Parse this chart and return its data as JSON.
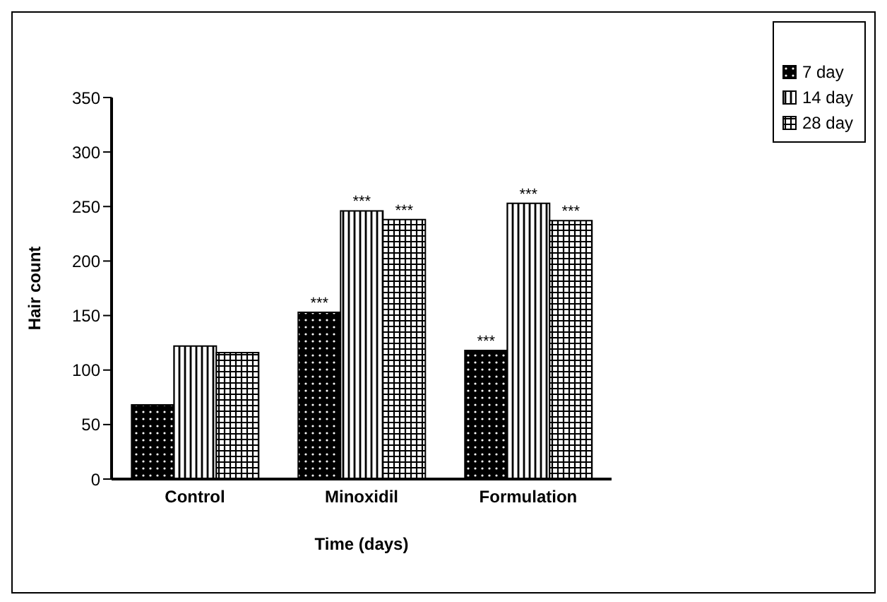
{
  "chart_data": {
    "type": "bar",
    "xlabel": "Time (days)",
    "ylabel": "Hair count",
    "categories": [
      "Control",
      "Minoxidil",
      "Formulation"
    ],
    "series": [
      {
        "name": "7 day",
        "color": "#000000",
        "values": [
          68,
          153,
          118
        ],
        "value_labels": [
          null,
          "***",
          "***"
        ]
      },
      {
        "name": "14 day",
        "color": "#000000",
        "values": [
          122,
          246,
          253
        ],
        "value_labels": [
          null,
          "***",
          "***"
        ]
      },
      {
        "name": "28 day",
        "color": "#000000",
        "values": [
          116,
          238,
          237
        ],
        "value_labels": [
          null,
          "***",
          "***"
        ]
      }
    ],
    "ylim": [
      0,
      350
    ],
    "yticks": [
      0,
      50,
      100,
      150,
      200,
      250,
      300,
      350
    ],
    "grid": false,
    "legend": "top right"
  }
}
